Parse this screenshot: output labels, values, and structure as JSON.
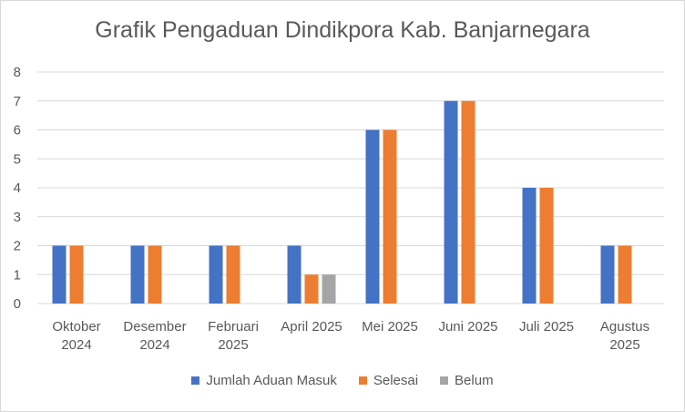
{
  "chart_data": {
    "type": "bar",
    "title": "Grafik Pengaduan Dindikpora Kab. Banjarnegara",
    "categories": [
      [
        "Oktober",
        "2024"
      ],
      [
        "Desember",
        "2024"
      ],
      [
        "Februari",
        "2025"
      ],
      [
        "April 2025"
      ],
      [
        "Mei 2025"
      ],
      [
        "Juni 2025"
      ],
      [
        "Juli 2025"
      ],
      [
        "Agustus",
        "2025"
      ]
    ],
    "series": [
      {
        "name": "Jumlah Aduan Masuk",
        "color": "#4472c4",
        "values": [
          2,
          2,
          2,
          2,
          6,
          7,
          4,
          2
        ]
      },
      {
        "name": "Selesai",
        "color": "#ed7d31",
        "values": [
          2,
          2,
          2,
          1,
          6,
          7,
          4,
          2
        ]
      },
      {
        "name": "Belum",
        "color": "#a5a5a5",
        "values": [
          0,
          0,
          0,
          1,
          0,
          0,
          0,
          0
        ]
      }
    ],
    "ylim": [
      0,
      8
    ],
    "yticks": [
      0,
      1,
      2,
      3,
      4,
      5,
      6,
      7,
      8
    ],
    "grid": true,
    "legend_position": "bottom",
    "grid_color": "#d9d9d9",
    "text_color": "#595959"
  }
}
